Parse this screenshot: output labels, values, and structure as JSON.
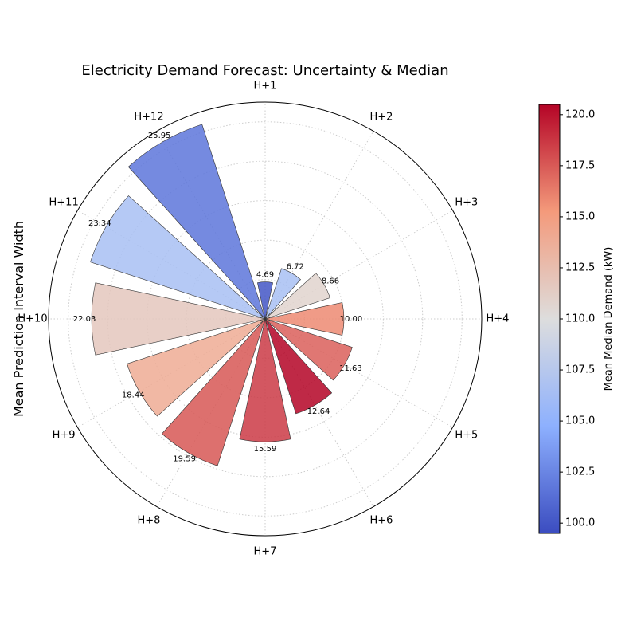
{
  "chart_data": {
    "type": "polar-bar",
    "title": "Electricity Demand Forecast: Uncertainty & Median",
    "ylabel": "Mean Prediction Interval Width",
    "categories": [
      "H+1",
      "H+2",
      "H+3",
      "H+4",
      "H+5",
      "H+6",
      "H+7",
      "H+8",
      "H+9",
      "H+10",
      "H+11",
      "H+12"
    ],
    "values": [
      4.69,
      6.72,
      8.66,
      10.0,
      11.63,
      12.64,
      15.59,
      19.59,
      18.44,
      22.03,
      23.34,
      25.95
    ],
    "value_labels": [
      "4.69",
      "6.72",
      "8.66",
      "10.00",
      "11.63",
      "12.64",
      "15.59",
      "19.59",
      "18.44",
      "22.03",
      "23.34",
      "25.95"
    ],
    "median_demand": [
      100.0,
      106.5,
      110.8,
      115.8,
      117.3,
      120.5,
      118.6,
      117.6,
      113.9,
      111.7,
      106.5,
      101.7
    ],
    "radial_max": 27.5,
    "radial_grid": [
      5,
      10,
      15,
      20,
      25
    ],
    "direction": "clockwise",
    "zero_location": "top",
    "grid": true,
    "colorbar": {
      "label": "Mean Median Demand (kW)",
      "min": 99.5,
      "max": 120.5,
      "ticks": [
        "100.0",
        "102.5",
        "105.0",
        "107.5",
        "110.0",
        "112.5",
        "115.0",
        "117.5",
        "120.0"
      ],
      "tick_values": [
        100.0,
        102.5,
        105.0,
        107.5,
        110.0,
        112.5,
        115.0,
        117.5,
        120.0
      ],
      "colormap": "coolwarm"
    }
  }
}
